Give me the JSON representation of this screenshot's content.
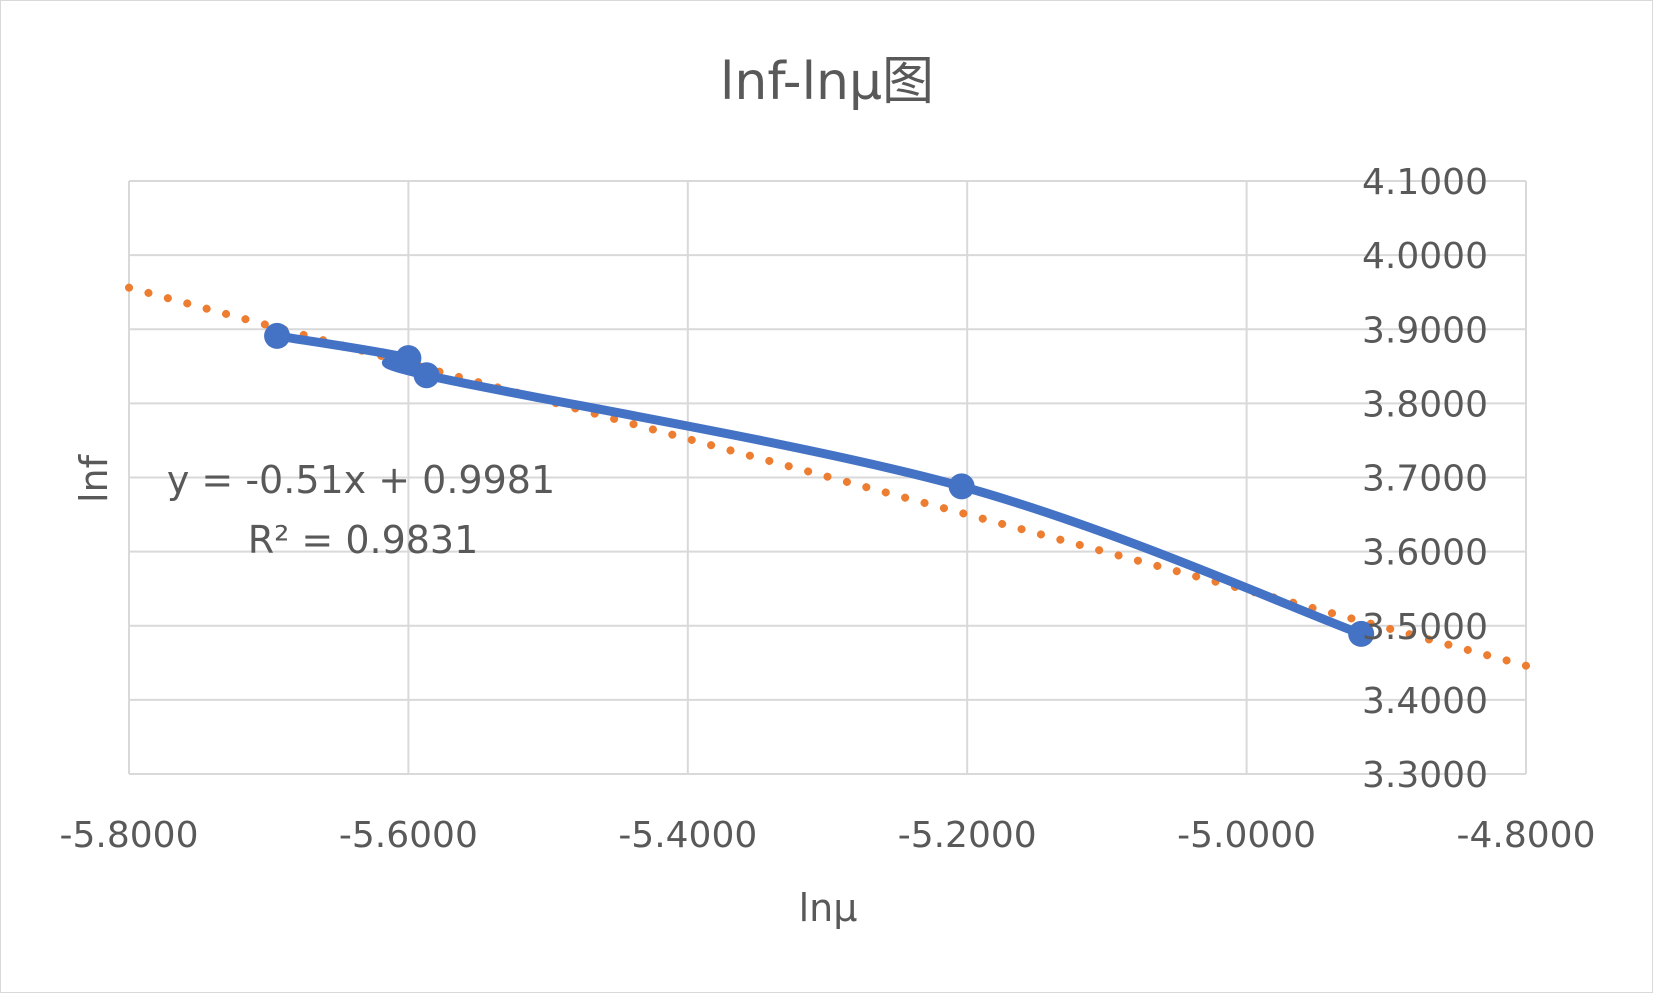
{
  "chart_data": {
    "type": "scatter",
    "title": "lnf-lnμ图",
    "xlabel": "lnμ",
    "ylabel": "lnf",
    "xlim": [
      -5.8,
      -4.8
    ],
    "ylim": [
      3.3,
      4.1
    ],
    "x_ticks": [
      "-5.8000",
      "-5.6000",
      "-5.4000",
      "-5.2000",
      "-5.0000",
      "-4.8000"
    ],
    "y_ticks": [
      "3.3000",
      "3.4000",
      "3.5000",
      "3.6000",
      "3.7000",
      "3.8000",
      "3.9000",
      "4.0000",
      "4.1000"
    ],
    "x_tick_values": [
      -5.8,
      -5.6,
      -5.4,
      -5.2,
      -5.0,
      -4.8
    ],
    "y_tick_values": [
      3.3,
      3.4,
      3.5,
      3.6,
      3.7,
      3.8,
      3.9,
      4.0,
      4.1
    ],
    "grid": true,
    "series": [
      {
        "color": "#4472C4",
        "smooth": true,
        "points": [
          {
            "x": -5.694,
            "y": 3.891
          },
          {
            "x": -5.6,
            "y": 3.861
          },
          {
            "x": -5.587,
            "y": 3.838
          },
          {
            "x": -5.204,
            "y": 3.688
          },
          {
            "x": -4.918,
            "y": 3.489
          }
        ]
      }
    ],
    "trendline": {
      "color": "#ED7D31",
      "style": "dotted",
      "slope": -0.51,
      "intercept": 0.9981,
      "equation": "y = -0.51x + 0.9981",
      "r_squared": "R² = 0.9831"
    }
  }
}
